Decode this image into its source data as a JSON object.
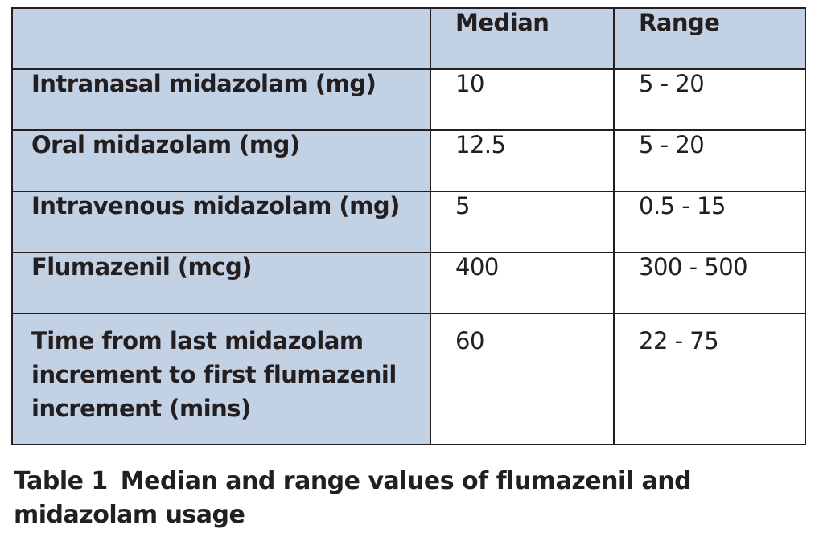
{
  "table": {
    "headers": [
      "",
      "Median",
      "Range"
    ],
    "rows": [
      {
        "label": "Intranasal midazolam (mg)",
        "median": "10",
        "range": "5 - 20"
      },
      {
        "label": "Oral midazolam (mg)",
        "median": "12.5",
        "range": "5 - 20"
      },
      {
        "label": "Intravenous midazolam (mg)",
        "median": "5",
        "range": "0.5 - 15"
      },
      {
        "label": "Flumazenil (mcg)",
        "median": "400",
        "range": "300 - 500"
      },
      {
        "label_lines": [
          "Time from last midazolam",
          "increment to first flumazenil",
          "increment (mins)"
        ],
        "median": "60",
        "range": "22 - 75"
      }
    ],
    "colors": {
      "header_fill": "#c3d1e5",
      "label_fill": "#c3d1e5",
      "border": "#231f20"
    }
  },
  "caption": {
    "number": "Table 1",
    "text_lines": [
      "Median and range values of flumazenil and",
      "midazolam usage"
    ]
  }
}
